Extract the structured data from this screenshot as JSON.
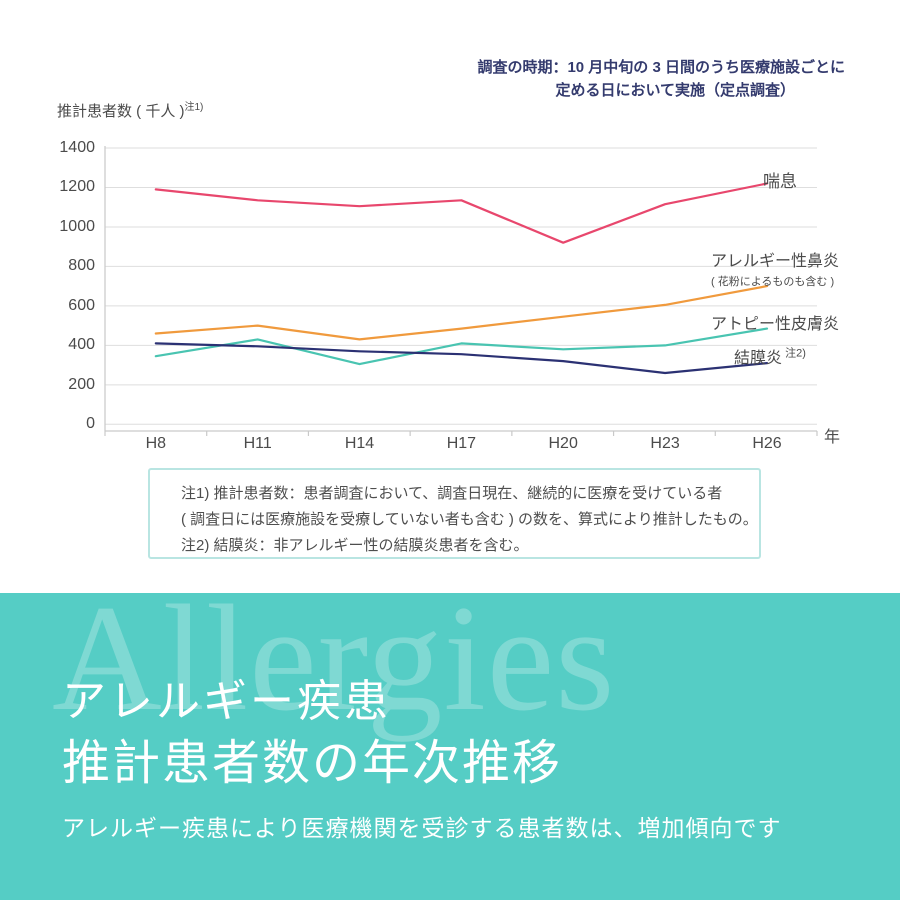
{
  "survey_note": {
    "line1": "調査の時期：10 月中旬の 3 日間のうち医療施設ごとに",
    "line2": "定める日において実施（定点調査）"
  },
  "chart_data": {
    "type": "line",
    "ylabel": "推計患者数 ( 千人 )",
    "ylabel_note": "注1)",
    "xlabel": "年",
    "categories": [
      "H8",
      "H11",
      "H14",
      "H17",
      "H20",
      "H23",
      "H26"
    ],
    "ylim": [
      0,
      1400
    ],
    "ytick_step": 200,
    "grid": "horizontal",
    "legend_position": "right-of-plot",
    "series": [
      {
        "name": "喘息",
        "color": "#e8476d",
        "values": [
          1190,
          1135,
          1105,
          1135,
          920,
          1115,
          1220
        ]
      },
      {
        "name": "アレルギー性鼻炎",
        "subname": "( 花粉によるものも含む )",
        "color": "#f09a3d",
        "values": [
          460,
          500,
          430,
          485,
          545,
          605,
          700
        ]
      },
      {
        "name": "アトピー性皮膚炎",
        "color": "#49c4b1",
        "values": [
          345,
          430,
          305,
          410,
          380,
          400,
          485
        ]
      },
      {
        "name": "結膜炎",
        "note_suffix": "注2)",
        "color": "#2b3173",
        "values": [
          410,
          395,
          370,
          355,
          320,
          260,
          310
        ]
      }
    ]
  },
  "notes": {
    "line1": "注1) 推計患者数：患者調査において、調査日現在、継続的に医療を受けている者",
    "line2": "( 調査日には医療施設を受療していない者も含む ) の数を、算式により推計したもの。",
    "line3": "注2) 結膜炎：非アレルギー性の結膜炎患者を含む。"
  },
  "banner": {
    "watermark": "Allergies",
    "title_line1": "アレルギー疾患",
    "title_line2": "推計患者数の年次推移",
    "subtitle": "アレルギー疾患により医療機関を受診する患者数は、増加傾向です",
    "bg_color": "#55cdc5"
  },
  "colors": {
    "gridline": "#dedede",
    "axis": "#c9c9c9",
    "tick_text": "#4b4b4b",
    "survey_note_text": "#343b6e",
    "notes_border": "#b9e5e2"
  }
}
